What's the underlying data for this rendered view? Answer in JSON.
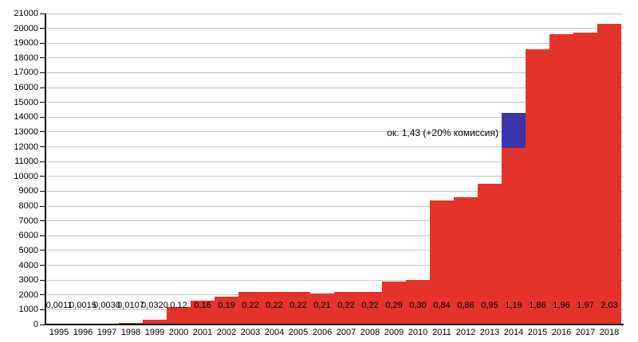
{
  "chart_data": {
    "type": "bar",
    "title": "",
    "xlabel": "",
    "ylabel": "",
    "categories": [
      "1995",
      "1996",
      "1997",
      "1998",
      "1999",
      "2000",
      "2001",
      "2002",
      "2003",
      "2004",
      "2005",
      "2006",
      "2007",
      "2008",
      "2009",
      "2010",
      "2011",
      "2012",
      "2013",
      "2014",
      "2015",
      "2016",
      "2017",
      "2018"
    ],
    "values": [
      0.0011,
      0.0015,
      0.003,
      0.0107,
      0.032,
      0.12,
      0.16,
      0.19,
      0.22,
      0.22,
      0.22,
      0.21,
      0.22,
      0.22,
      0.29,
      0.3,
      0.84,
      0.86,
      0.95,
      1.19,
      1.86,
      1.96,
      1.97,
      2.03
    ],
    "value_labels": [
      "0,0011",
      "0,0015",
      "0,0030",
      "0,0107",
      "0,0320",
      "0,12",
      "0,16",
      "0,19",
      "0,22",
      "0,22",
      "0,22",
      "0,21",
      "0,22",
      "0,22",
      "0,29",
      "0,30",
      "0,84",
      "0,86",
      "0,95",
      "1,19",
      "1,86",
      "1,96",
      "1,97",
      "2,03"
    ],
    "bar_axis_scale": 10000,
    "ylim": [
      0,
      21000
    ],
    "y_tick_step": 1000,
    "grid": "horizontal",
    "legend": "none",
    "colors": {
      "bar": "#e4332b",
      "highlight": "#3a35ad",
      "gridline": "#c6c6c6",
      "axis": "#000000",
      "text": "#000000"
    },
    "highlight": {
      "category": "2014",
      "from_value": 1.19,
      "to_value": 1.43,
      "annotation": "ок. 1,43 (+20% комиссия)"
    }
  }
}
